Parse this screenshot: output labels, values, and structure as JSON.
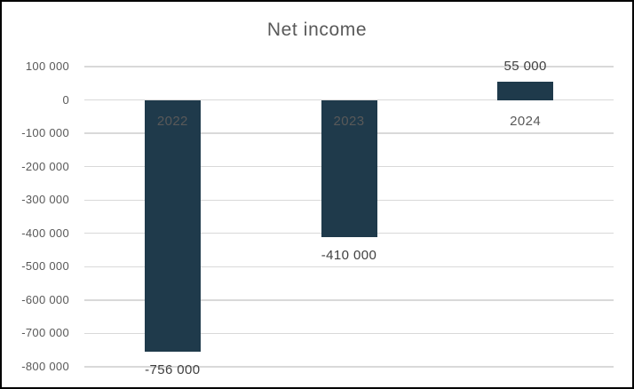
{
  "chart_data": {
    "type": "bar",
    "title": "Net income",
    "categories": [
      "2022",
      "2023",
      "2024"
    ],
    "values": [
      -756000,
      -410000,
      55000
    ],
    "value_labels": [
      "-756 000",
      "-410 000",
      "55 000"
    ],
    "xlabel": "",
    "ylabel": "",
    "ylim": [
      -800000,
      100000
    ],
    "y_ticks": [
      100000,
      0,
      -100000,
      -200000,
      -300000,
      -400000,
      -500000,
      -600000,
      -700000,
      -800000
    ],
    "y_tick_labels": [
      "100 000",
      "0",
      "-100 000",
      "-200 000",
      "-300 000",
      "-400 000",
      "-500 000",
      "-600 000",
      "-700 000",
      "-800 000"
    ],
    "grid": "horizontal",
    "legend": "none",
    "colors": {
      "bar_fill": "#1F3A4B",
      "gridline": "#D9D9D9",
      "title_text": "#595959",
      "axis_tick_text": "#595959",
      "category_text": "#595959",
      "data_label_text": "#404040",
      "background": "#FFFFFF",
      "frame_border": "#000000"
    }
  }
}
